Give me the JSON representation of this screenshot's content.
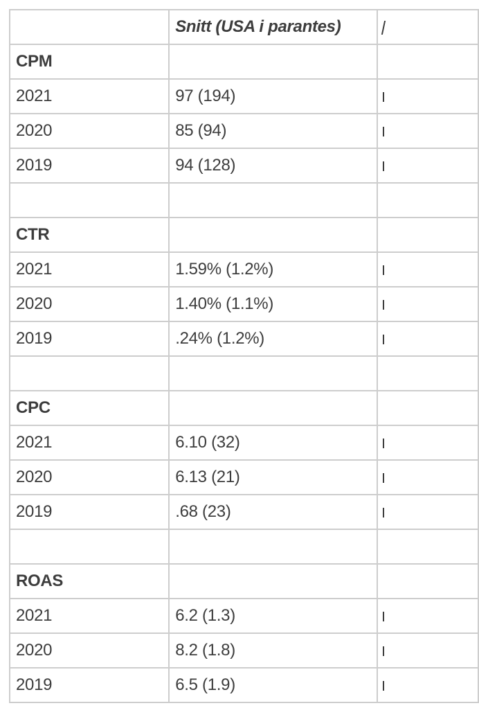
{
  "colors": {
    "background": "#ffffff",
    "border": "#cdcdcd",
    "text": "#3d3d3d"
  },
  "table": {
    "header_label": "Snitt (USA i parantes)",
    "third_column_clipped": true,
    "rows": [
      {
        "type": "header",
        "c1": "",
        "c2": "Snitt (USA i parantes)",
        "c3_fragment": true
      },
      {
        "type": "section",
        "c1": "CPM",
        "c2": ""
      },
      {
        "type": "data",
        "c1": "2021",
        "c2": "97 (194)",
        "c3_fragment": true
      },
      {
        "type": "data",
        "c1": "2020",
        "c2": "85 (94)",
        "c3_fragment": true
      },
      {
        "type": "data",
        "c1": "2019",
        "c2": "94 (128)",
        "c3_fragment": true
      },
      {
        "type": "spacer",
        "c1": "",
        "c2": ""
      },
      {
        "type": "section",
        "c1": "CTR",
        "c2": ""
      },
      {
        "type": "data",
        "c1": "2021",
        "c2": "1.59% (1.2%)",
        "c3_fragment": true
      },
      {
        "type": "data",
        "c1": "2020",
        "c2": "1.40% (1.1%)",
        "c3_fragment": true
      },
      {
        "type": "data",
        "c1": "2019",
        "c2": ".24% (1.2%)",
        "c3_fragment": true
      },
      {
        "type": "spacer",
        "c1": "",
        "c2": ""
      },
      {
        "type": "section",
        "c1": "CPC",
        "c2": ""
      },
      {
        "type": "data",
        "c1": "2021",
        "c2": "6.10 (32)",
        "c3_fragment": true
      },
      {
        "type": "data",
        "c1": "2020",
        "c2": "6.13 (21)",
        "c3_fragment": true
      },
      {
        "type": "data",
        "c1": "2019",
        "c2": ".68 (23)",
        "c3_fragment": true
      },
      {
        "type": "spacer",
        "c1": "",
        "c2": ""
      },
      {
        "type": "section",
        "c1": "ROAS",
        "c2": ""
      },
      {
        "type": "data",
        "c1": "2021",
        "c2": "6.2 (1.3)",
        "c3_fragment": true
      },
      {
        "type": "data",
        "c1": "2020",
        "c2": "8.2 (1.8)",
        "c3_fragment": true
      },
      {
        "type": "data",
        "c1": "2019",
        "c2": "6.5 (1.9)",
        "c3_fragment": true
      }
    ]
  },
  "chart_data": {
    "type": "table",
    "columns": [
      "",
      "Snitt (USA i parantes)"
    ],
    "sections": [
      {
        "metric": "CPM",
        "years": [
          "2021",
          "2020",
          "2019"
        ],
        "values": [
          "97 (194)",
          "85 (94)",
          "94 (128)"
        ]
      },
      {
        "metric": "CTR",
        "years": [
          "2021",
          "2020",
          "2019"
        ],
        "values": [
          "1.59% (1.2%)",
          "1.40% (1.1%)",
          ".24% (1.2%)"
        ]
      },
      {
        "metric": "CPC",
        "years": [
          "2021",
          "2020",
          "2019"
        ],
        "values": [
          "6.10 (32)",
          "6.13 (21)",
          ".68 (23)"
        ]
      },
      {
        "metric": "ROAS",
        "years": [
          "2021",
          "2020",
          "2019"
        ],
        "values": [
          "6.2 (1.3)",
          "8.2 (1.8)",
          "6.5 (1.9)"
        ]
      }
    ]
  }
}
